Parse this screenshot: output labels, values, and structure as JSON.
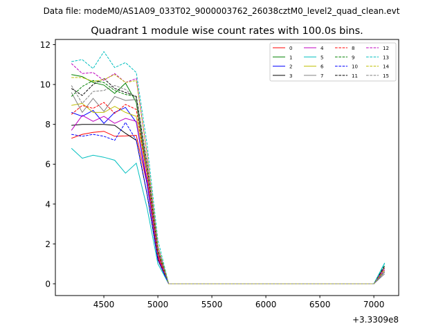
{
  "chart_data": {
    "type": "line",
    "suptitle": "Data file: modeM0/AS1A09_033T02_9000003762_26038cztM0_level2_quad_clean.evt",
    "title": "Quadrant 1 module wise count rates with 100.0s bins.",
    "xlabel": "",
    "ylabel": "",
    "x_offset_label": "+3.3309e8",
    "xlim": [
      4051,
      7230
    ],
    "ylim": [
      -0.59,
      12.26
    ],
    "xticks": [
      5000,
      5500,
      6000,
      6500,
      7000,
      4500
    ],
    "xtick_labels": [
      "5000",
      "5500",
      "6000",
      "6500",
      "7000",
      "4500"
    ],
    "yticks": [
      0,
      2,
      4,
      6,
      8,
      10,
      12
    ],
    "ytick_labels": [
      "0",
      "2",
      "4",
      "6",
      "8",
      "10",
      "12"
    ],
    "legend_placement": "top-right",
    "x": [
      4200,
      4300,
      4400,
      4500,
      4600,
      4700,
      4800,
      4900,
      5000,
      5100,
      7000,
      7100
    ],
    "series": [
      {
        "name": "0",
        "color": "#ff0000",
        "dash": false,
        "values": [
          7.3,
          7.5,
          7.6,
          7.65,
          7.4,
          7.42,
          7.45,
          5.0,
          1.3,
          0,
          0,
          0.7
        ]
      },
      {
        "name": "1",
        "color": "#008000",
        "dash": false,
        "values": [
          10.5,
          10.4,
          10.1,
          9.97,
          9.55,
          10.07,
          9.1,
          5.5,
          1.6,
          0,
          0,
          0.8
        ]
      },
      {
        "name": "2",
        "color": "#0000ff",
        "dash": false,
        "values": [
          8.6,
          8.4,
          8.7,
          8.05,
          8.6,
          8.85,
          8.1,
          5.0,
          1.4,
          0,
          0,
          0.6
        ]
      },
      {
        "name": "3",
        "color": "#000000",
        "dash": false,
        "values": [
          7.95,
          8.0,
          8.0,
          8.0,
          7.95,
          7.55,
          7.2,
          4.5,
          1.2,
          0,
          0,
          0.6
        ]
      },
      {
        "name": "4",
        "color": "#bf00bf",
        "dash": false,
        "values": [
          7.7,
          8.45,
          8.15,
          8.4,
          8.05,
          8.3,
          8.15,
          5.2,
          1.4,
          0,
          0,
          0.7
        ]
      },
      {
        "name": "5",
        "color": "#00bfbf",
        "dash": false,
        "values": [
          6.8,
          6.3,
          6.45,
          6.35,
          6.2,
          5.55,
          6.05,
          3.8,
          1.0,
          0,
          0,
          1.05
        ]
      },
      {
        "name": "6",
        "color": "#bfbf00",
        "dash": false,
        "values": [
          8.95,
          9.05,
          8.6,
          8.6,
          8.9,
          8.6,
          8.4,
          5.5,
          1.5,
          0,
          0,
          0.6
        ]
      },
      {
        "name": "7",
        "color": "#808080",
        "dash": false,
        "values": [
          9.6,
          8.6,
          9.3,
          8.65,
          9.4,
          9.2,
          9.25,
          5.8,
          1.6,
          0,
          0,
          0.5
        ]
      },
      {
        "name": "8",
        "color": "#ff0000",
        "dash": true,
        "values": [
          8.5,
          8.95,
          8.8,
          9.1,
          8.55,
          9.0,
          8.75,
          5.5,
          1.5,
          0,
          0,
          0.8
        ]
      },
      {
        "name": "9",
        "color": "#008000",
        "dash": true,
        "values": [
          9.4,
          9.9,
          10.2,
          10.1,
          9.7,
          9.5,
          9.4,
          6.0,
          1.7,
          0,
          0,
          0.9
        ]
      },
      {
        "name": "10",
        "color": "#0000ff",
        "dash": true,
        "values": [
          7.5,
          7.4,
          7.5,
          7.4,
          7.2,
          8.1,
          7.2,
          4.5,
          1.2,
          0,
          0,
          0.6
        ]
      },
      {
        "name": "11",
        "color": "#000000",
        "dash": true,
        "values": [
          9.8,
          9.45,
          10.0,
          10.3,
          9.8,
          9.6,
          9.4,
          6.0,
          1.7,
          0,
          0,
          0.9
        ]
      },
      {
        "name": "12",
        "color": "#bf00bf",
        "dash": true,
        "values": [
          11.05,
          10.55,
          10.6,
          10.2,
          10.55,
          10.1,
          10.3,
          6.5,
          1.9,
          0,
          0,
          0.8
        ]
      },
      {
        "name": "13",
        "color": "#00bfbf",
        "dash": true,
        "values": [
          11.15,
          11.25,
          10.8,
          11.65,
          10.85,
          11.1,
          10.6,
          7.0,
          2.2,
          0,
          0,
          1.0
        ]
      },
      {
        "name": "14",
        "color": "#bfbf00",
        "dash": true,
        "values": [
          10.35,
          10.35,
          10.15,
          10.25,
          10.5,
          10.1,
          10.2,
          6.5,
          1.9,
          0,
          0,
          0.7
        ]
      },
      {
        "name": "15",
        "color": "#808080",
        "dash": true,
        "values": [
          9.95,
          9.05,
          9.65,
          9.7,
          9.95,
          9.75,
          9.3,
          6.0,
          1.7,
          0,
          0,
          0.6
        ]
      }
    ]
  }
}
